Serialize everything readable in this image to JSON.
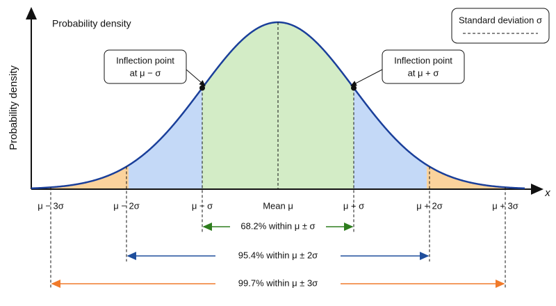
{
  "axis": {
    "y_label": "Probability density",
    "x_label": "x"
  },
  "curve_label": "Probability density",
  "callouts": [
    {
      "lines": [
        "Inflection point",
        "at μ − σ"
      ]
    },
    {
      "lines": [
        "Inflection point",
        "at μ + σ"
      ]
    }
  ],
  "legend": {
    "label": "Standard deviation σ"
  },
  "ticks": [
    "μ − 3σ",
    "μ − 2σ",
    "μ − σ",
    "Mean μ",
    "μ + σ",
    "μ + 2σ",
    "μ + 3σ"
  ],
  "ranges": [
    "68.2% within μ ± σ",
    "95.4% within μ ± 2σ",
    "99.7% within μ ± 3σ"
  ]
}
